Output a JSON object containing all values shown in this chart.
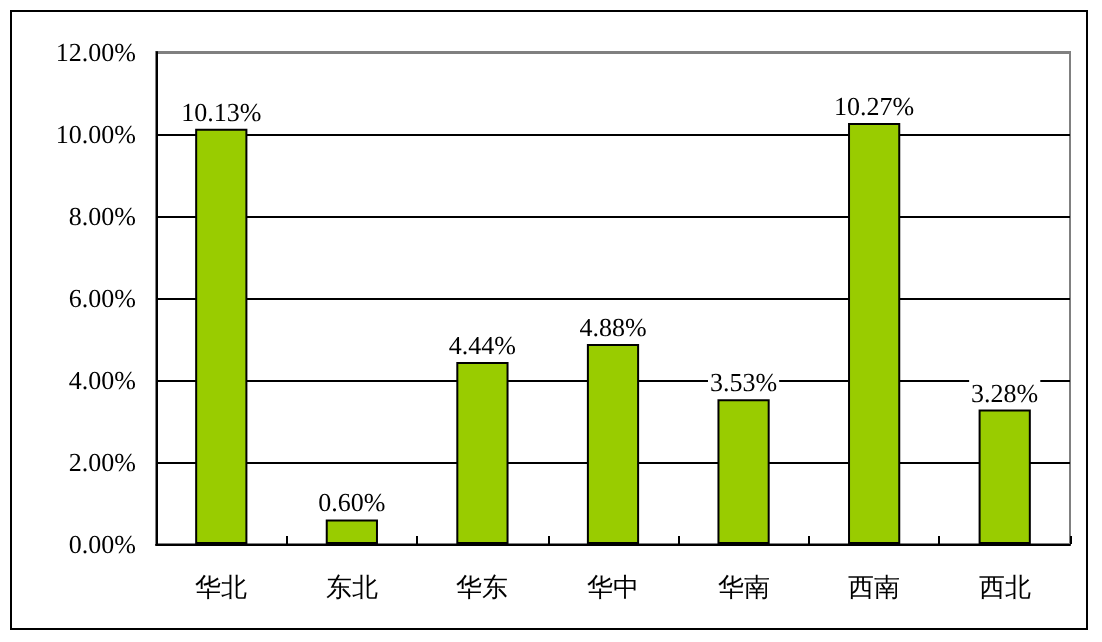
{
  "chart_data": {
    "type": "bar",
    "categories": [
      "华北",
      "东北",
      "华东",
      "华中",
      "华南",
      "西南",
      "西北"
    ],
    "values": [
      10.13,
      0.6,
      4.44,
      4.88,
      3.53,
      10.27,
      3.28
    ],
    "color": "#99cc00",
    "value_labels": [
      "10.13%",
      "0.60%",
      "4.44%",
      "4.88%",
      "3.53%",
      "10.27%",
      "3.28%"
    ],
    "ylim": [
      0,
      12
    ],
    "yticks": [
      {
        "value": 0,
        "label": "0.00%"
      },
      {
        "value": 2,
        "label": "2.00%"
      },
      {
        "value": 4,
        "label": "4.00%"
      },
      {
        "value": 6,
        "label": "6.00%"
      },
      {
        "value": 8,
        "label": "8.00%"
      },
      {
        "value": 10,
        "label": "10.00%"
      },
      {
        "value": 12,
        "label": "12.00%"
      }
    ],
    "grid": "y"
  }
}
